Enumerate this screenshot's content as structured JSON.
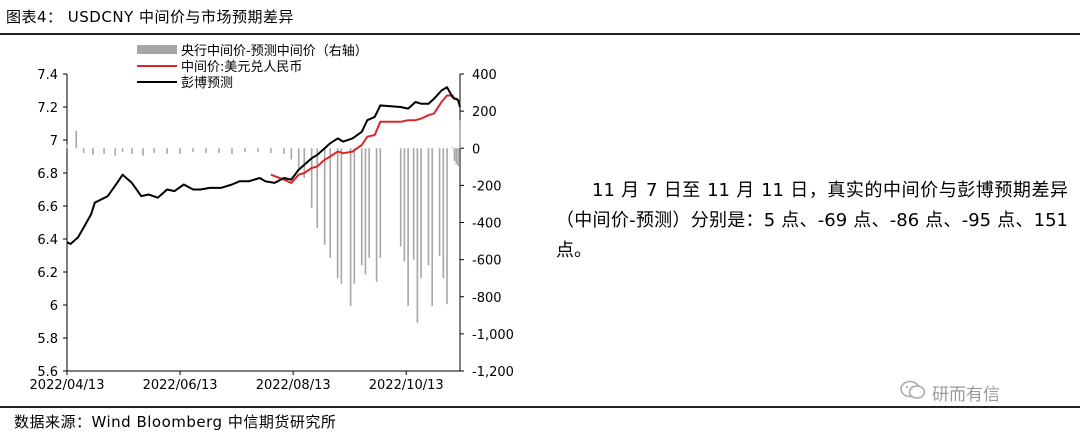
{
  "figure": {
    "title": "图表4： USDCNY 中间价与市场预期差异",
    "source": "数据来源：Wind  Bloomberg  中信期货研究所"
  },
  "commentary": "11 月 7 日至 11 月 11 日，真实的中间价与彭博预期差异（中间价-预测）分别是：5 点、-69 点、-86 点、-95 点、151 点。",
  "watermark": {
    "icon": "wechat-icon",
    "text": "研而有信"
  },
  "chart_data": {
    "type": "line",
    "xlabel": "",
    "ylabel": "",
    "x_ticks": [
      "2022/04/13",
      "2022/06/13",
      "2022/08/13",
      "2022/10/13"
    ],
    "x_range": [
      "2022/04/13",
      "2022/11/11"
    ],
    "ylim": [
      5.6,
      7.4
    ],
    "y_ticks": [
      "5.6",
      "5.8",
      "6",
      "6.2",
      "6.4",
      "6.6",
      "6.8",
      "7",
      "7.2",
      "7.4"
    ],
    "y2lim": [
      -1200,
      400
    ],
    "y2_ticks": [
      "-1,200",
      "-1,000",
      "-800",
      "-600",
      "-400",
      "-200",
      "0",
      "200",
      "400"
    ],
    "grid": false,
    "legend": "top-center",
    "series": [
      {
        "name": "央行中间价-预测中间价（右轴）",
        "type": "bar",
        "axis": "right",
        "color": "#a6a6a6",
        "x": [
          "2022/04/13",
          "2022/04/18",
          "2022/04/22",
          "2022/04/27",
          "2022/05/03",
          "2022/05/09",
          "2022/05/13",
          "2022/05/18",
          "2022/05/24",
          "2022/05/30",
          "2022/06/06",
          "2022/06/13",
          "2022/06/20",
          "2022/06/27",
          "2022/07/04",
          "2022/07/11",
          "2022/07/18",
          "2022/07/25",
          "2022/08/01",
          "2022/08/08",
          "2022/08/12",
          "2022/08/16",
          "2022/08/19",
          "2022/08/23",
          "2022/08/26",
          "2022/08/30",
          "2022/09/02",
          "2022/09/06",
          "2022/09/08",
          "2022/09/13",
          "2022/09/15",
          "2022/09/19",
          "2022/09/21",
          "2022/09/23",
          "2022/09/27",
          "2022/09/29",
          "2022/10/10",
          "2022/10/12",
          "2022/10/14",
          "2022/10/17",
          "2022/10/19",
          "2022/10/21",
          "2022/10/25",
          "2022/10/27",
          "2022/10/31",
          "2022/11/02",
          "2022/11/04",
          "2022/11/07",
          "2022/11/08",
          "2022/11/09",
          "2022/11/10",
          "2022/11/11"
        ],
        "values": [
          20,
          95,
          -25,
          -35,
          -30,
          -40,
          -20,
          -30,
          -40,
          -25,
          -30,
          -30,
          -20,
          -25,
          -25,
          -30,
          -20,
          -20,
          -25,
          -30,
          -60,
          -120,
          -160,
          -320,
          -430,
          -520,
          -590,
          -700,
          -730,
          -850,
          -730,
          -630,
          -680,
          -590,
          -720,
          -590,
          -530,
          -610,
          -850,
          -600,
          -940,
          -700,
          -630,
          -850,
          -580,
          -700,
          -840,
          5,
          -69,
          -86,
          -95,
          151
        ]
      },
      {
        "name": "中间价:美元兑人民币",
        "type": "line",
        "axis": "left",
        "color": "#d9262b",
        "x": [
          "2022/08/01",
          "2022/08/08",
          "2022/08/12",
          "2022/08/16",
          "2022/08/19",
          "2022/08/23",
          "2022/08/26",
          "2022/08/30",
          "2022/09/02",
          "2022/09/06",
          "2022/09/09",
          "2022/09/14",
          "2022/09/19",
          "2022/09/22",
          "2022/09/26",
          "2022/09/29",
          "2022/10/10",
          "2022/10/14",
          "2022/10/18",
          "2022/10/21",
          "2022/10/25",
          "2022/10/28",
          "2022/11/01",
          "2022/11/04",
          "2022/11/07",
          "2022/11/08",
          "2022/11/09",
          "2022/11/10",
          "2022/11/11"
        ],
        "values": [
          6.79,
          6.76,
          6.74,
          6.79,
          6.8,
          6.83,
          6.84,
          6.88,
          6.9,
          6.93,
          6.92,
          6.93,
          6.97,
          7.02,
          7.03,
          7.11,
          7.11,
          7.12,
          7.12,
          7.13,
          7.15,
          7.16,
          7.23,
          7.27,
          7.27,
          7.25,
          7.25,
          7.24,
          7.22
        ]
      },
      {
        "name": "彭博预测",
        "type": "line",
        "axis": "left",
        "color": "#000000",
        "x": [
          "2022/04/13",
          "2022/04/15",
          "2022/04/19",
          "2022/04/22",
          "2022/04/26",
          "2022/04/28",
          "2022/05/05",
          "2022/05/10",
          "2022/05/13",
          "2022/05/18",
          "2022/05/23",
          "2022/05/27",
          "2022/06/01",
          "2022/06/06",
          "2022/06/10",
          "2022/06/15",
          "2022/06/20",
          "2022/06/24",
          "2022/06/29",
          "2022/07/05",
          "2022/07/11",
          "2022/07/15",
          "2022/07/20",
          "2022/07/26",
          "2022/07/29",
          "2022/08/03",
          "2022/08/08",
          "2022/08/12",
          "2022/08/16",
          "2022/08/19",
          "2022/08/23",
          "2022/08/26",
          "2022/08/30",
          "2022/09/02",
          "2022/09/06",
          "2022/09/09",
          "2022/09/14",
          "2022/09/19",
          "2022/09/22",
          "2022/09/26",
          "2022/09/29",
          "2022/10/10",
          "2022/10/14",
          "2022/10/18",
          "2022/10/21",
          "2022/10/25",
          "2022/10/28",
          "2022/11/01",
          "2022/11/04",
          "2022/11/07",
          "2022/11/08",
          "2022/11/09",
          "2022/11/10",
          "2022/11/11"
        ],
        "values": [
          6.38,
          6.37,
          6.41,
          6.47,
          6.55,
          6.62,
          6.66,
          6.74,
          6.79,
          6.74,
          6.66,
          6.67,
          6.65,
          6.7,
          6.69,
          6.73,
          6.7,
          6.7,
          6.71,
          6.71,
          6.73,
          6.75,
          6.75,
          6.77,
          6.75,
          6.74,
          6.77,
          6.76,
          6.82,
          6.85,
          6.89,
          6.91,
          6.95,
          6.98,
          7.01,
          6.99,
          7.01,
          7.05,
          7.12,
          7.14,
          7.21,
          7.2,
          7.19,
          7.23,
          7.22,
          7.22,
          7.25,
          7.3,
          7.32,
          7.26,
          7.25,
          7.25,
          7.24,
          7.2
        ]
      }
    ]
  }
}
